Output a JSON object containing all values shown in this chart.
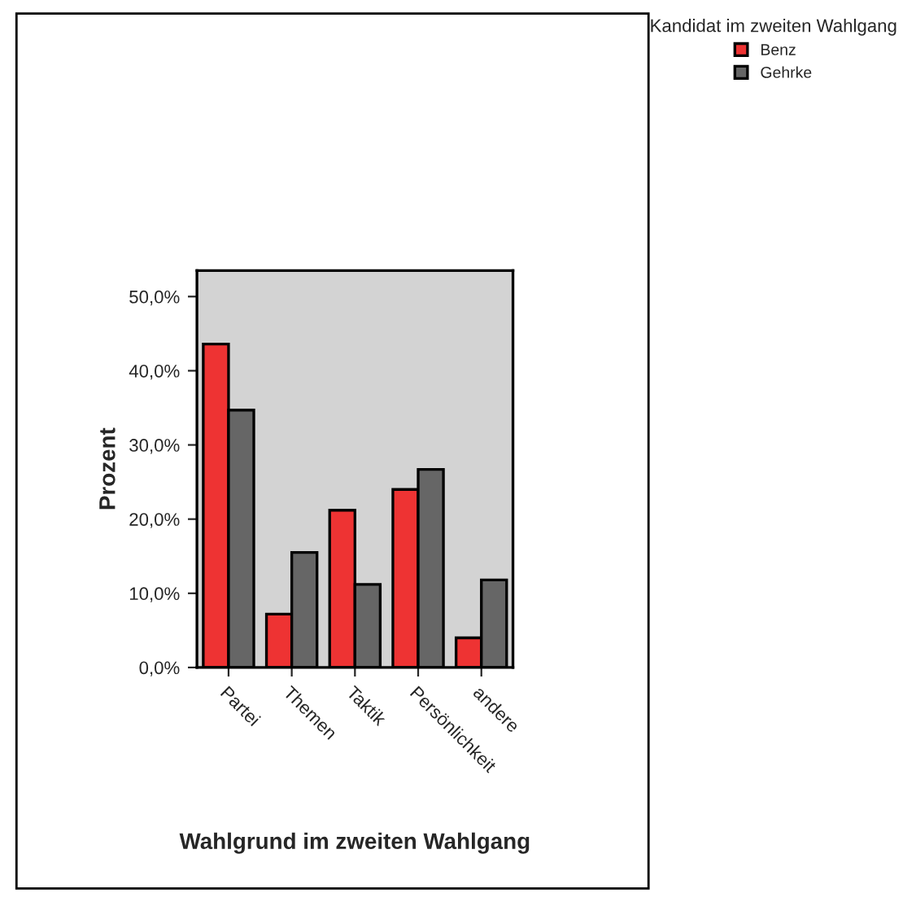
{
  "chart_data": {
    "type": "bar",
    "xlabel": "Wahlgrund im zweiten Wahlgang",
    "ylabel": "Prozent",
    "legend_title": "Kandidat im zweiten Wahlgang",
    "categories": [
      "Partei",
      "Themen",
      "Taktik",
      "Persönlichkeit",
      "andere"
    ],
    "series": [
      {
        "name": "Benz",
        "color": "#ee3333",
        "values": [
          43.6,
          7.2,
          21.2,
          24.0,
          4.0
        ]
      },
      {
        "name": "Gehrke",
        "color": "#666666",
        "values": [
          34.7,
          15.5,
          11.2,
          26.7,
          11.8
        ]
      }
    ],
    "ylim": [
      0,
      53.5
    ],
    "yticks": [
      {
        "value": 0,
        "label": "0,0%"
      },
      {
        "value": 10,
        "label": "10,0%"
      },
      {
        "value": 20,
        "label": "20,0%"
      },
      {
        "value": 30,
        "label": "30,0%"
      },
      {
        "value": 40,
        "label": "40,0%"
      },
      {
        "value": 50,
        "label": "50,0%"
      }
    ],
    "grid": false,
    "legend": "top right"
  }
}
